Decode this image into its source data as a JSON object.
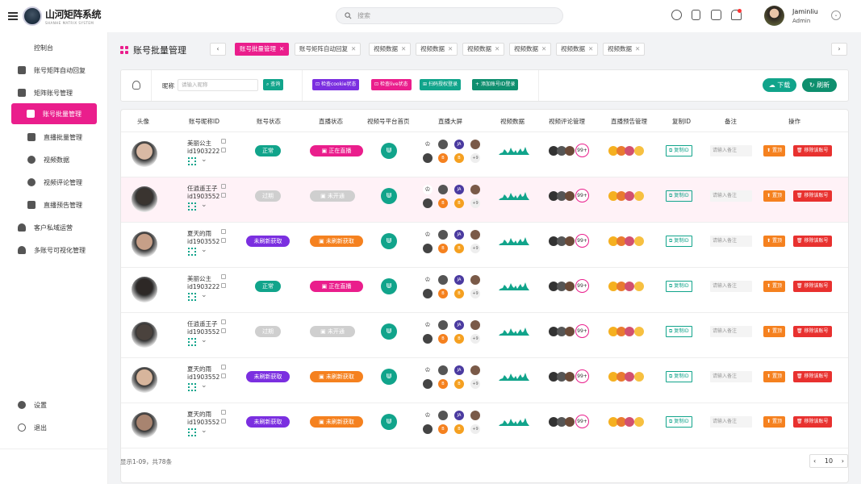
{
  "app": {
    "title": "山河矩阵系统",
    "subtitle": "SHANHE MATRIX SYSTEM"
  },
  "search": {
    "placeholder": "搜索"
  },
  "user": {
    "name": "Jaminliu",
    "role": "Admin"
  },
  "icons": {
    "menu": "menu-icon",
    "help": "help-icon",
    "doc": "document-icon",
    "chat": "chat-icon",
    "bell": "bell-icon"
  },
  "sidebar": {
    "items": [
      {
        "label": "控制台",
        "icon": "dashboard-icon"
      },
      {
        "label": "账号矩阵自动回复",
        "icon": "reply-icon"
      },
      {
        "label": "矩阵账号管理",
        "icon": "cube-icon"
      },
      {
        "label": "账号批量管理",
        "icon": "layers-icon",
        "active": true
      },
      {
        "label": "直播批量管理",
        "icon": "live-icon"
      },
      {
        "label": "视频数据",
        "icon": "pie-icon"
      },
      {
        "label": "视频评论管理",
        "icon": "comment-icon"
      },
      {
        "label": "直播预告管理",
        "icon": "calendar-icon"
      },
      {
        "label": "客户私域运营",
        "icon": "user-icon"
      },
      {
        "label": "多账号可视化管理",
        "icon": "users-icon"
      }
    ],
    "settings": "设置",
    "logout": "退出"
  },
  "page": {
    "title": "账号批量管理"
  },
  "tabs": [
    {
      "label": "账号批量管理",
      "active": true
    },
    {
      "label": "账号矩阵自动回复"
    },
    {
      "label": "视频数据"
    },
    {
      "label": "视频数据"
    },
    {
      "label": "视频数据"
    },
    {
      "label": "视频数据"
    },
    {
      "label": "视频数据"
    },
    {
      "label": "视频数据"
    }
  ],
  "filter": {
    "nick_label": "昵称",
    "nick_placeholder": "请输入昵称",
    "query": "查询",
    "b1": "检查cookie状态",
    "b2": "检查live状态",
    "b3": "扫码授权登录",
    "b4": "添加账号ID登录",
    "download": "下载",
    "refresh": "刷新"
  },
  "table": {
    "headers": [
      "头像",
      "账号昵称ID",
      "账号状态",
      "直播状态",
      "视频号平台首页",
      "直播大屏",
      "视频数据",
      "视频评论管理",
      "直播预告管理",
      "复制ID",
      "备注",
      "操作"
    ],
    "plus": "+9",
    "count99": "99+",
    "copy": "复制ID",
    "note": "请输入备注",
    "top": "置顶",
    "remove": "移除该账号",
    "rows": [
      {
        "name": "美丽公主",
        "id": "id1903222",
        "acct": "正常",
        "live": "正在直播",
        "hl": false,
        "av": "#d9b9a4"
      },
      {
        "name": "任逍遥王子",
        "id": "id1903552",
        "acct": "过期",
        "live": "未开通",
        "hl": true,
        "av": "#3a3430"
      },
      {
        "name": "夏天的雨",
        "id": "id1903552",
        "acct": "未刷新获取",
        "live": "未刷新获取",
        "hl": false,
        "av": "#c69f88"
      },
      {
        "name": "美丽公主",
        "id": "id1903222",
        "acct": "正常",
        "live": "正在直播",
        "hl": false,
        "av": "#2d2826"
      },
      {
        "name": "任逍遥王子",
        "id": "id1903552",
        "acct": "过期",
        "live": "未开通",
        "hl": false,
        "av": "#4a423d"
      },
      {
        "name": "夏天的雨",
        "id": "id1903552",
        "acct": "未刷新获取",
        "live": "未刷新获取",
        "hl": false,
        "av": "#d7b59c"
      },
      {
        "name": "夏天的雨",
        "id": "id1903552",
        "acct": "未刷新获取",
        "live": "未刷新获取",
        "hl": false,
        "av": "#a88470"
      }
    ]
  },
  "footer": {
    "text": "显示1-09，共78条",
    "page_size": "10"
  },
  "colors": {
    "brand": "#ea1e8c",
    "teal": "#11a48b",
    "purple": "#7b2fe0",
    "orange": "#f5811f",
    "red": "#e8312f"
  }
}
